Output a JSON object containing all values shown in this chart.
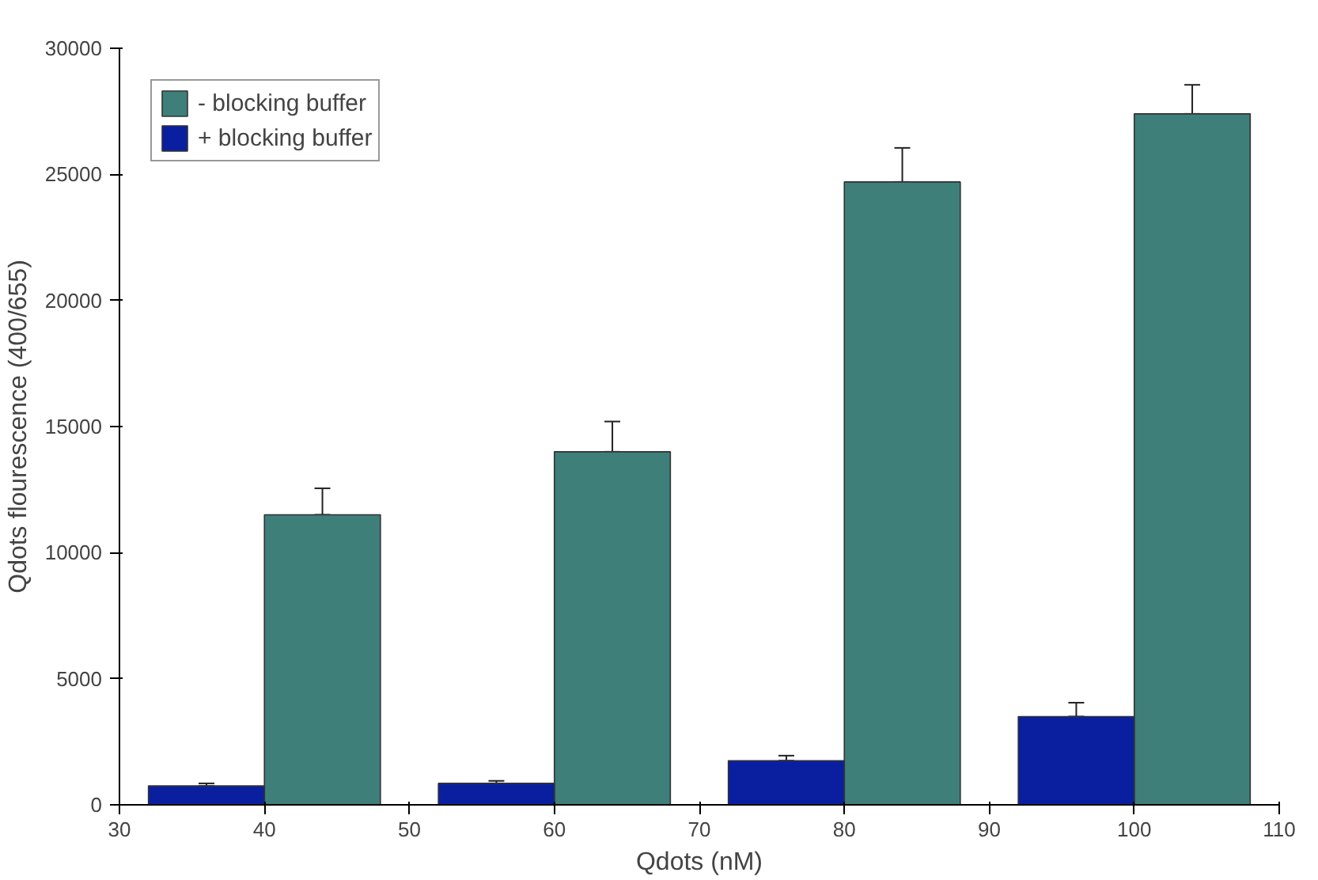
{
  "chart_data": {
    "type": "bar",
    "xlabel": "Qdots (nM)",
    "ylabel": "Qdots flourescence (400/655)",
    "xlim": [
      30,
      110
    ],
    "xticks": [
      30,
      40,
      50,
      60,
      70,
      80,
      90,
      100,
      110
    ],
    "ylim": [
      0,
      30000
    ],
    "yticks": [
      0,
      5000,
      10000,
      15000,
      20000,
      25000,
      30000
    ],
    "grid": false,
    "legend": "top left",
    "series": [
      {
        "name": "- blocking buffer",
        "color": "#3e7f7a",
        "x": [
          44,
          64,
          84,
          104
        ],
        "values": [
          11500,
          14000,
          24700,
          27400
        ],
        "errors": [
          [
            11500,
            12550
          ],
          [
            14000,
            15200
          ],
          [
            24700,
            26050
          ],
          [
            27400,
            28550
          ]
        ]
      },
      {
        "name": "+ blocking buffer",
        "color": "#0a1fa0",
        "x": [
          36,
          56,
          76,
          96
        ],
        "values": [
          750,
          850,
          1750,
          3500
        ],
        "errors": [
          [
            750,
            850
          ],
          [
            850,
            950
          ],
          [
            1750,
            1950
          ],
          [
            3500,
            4050
          ]
        ]
      }
    ]
  }
}
